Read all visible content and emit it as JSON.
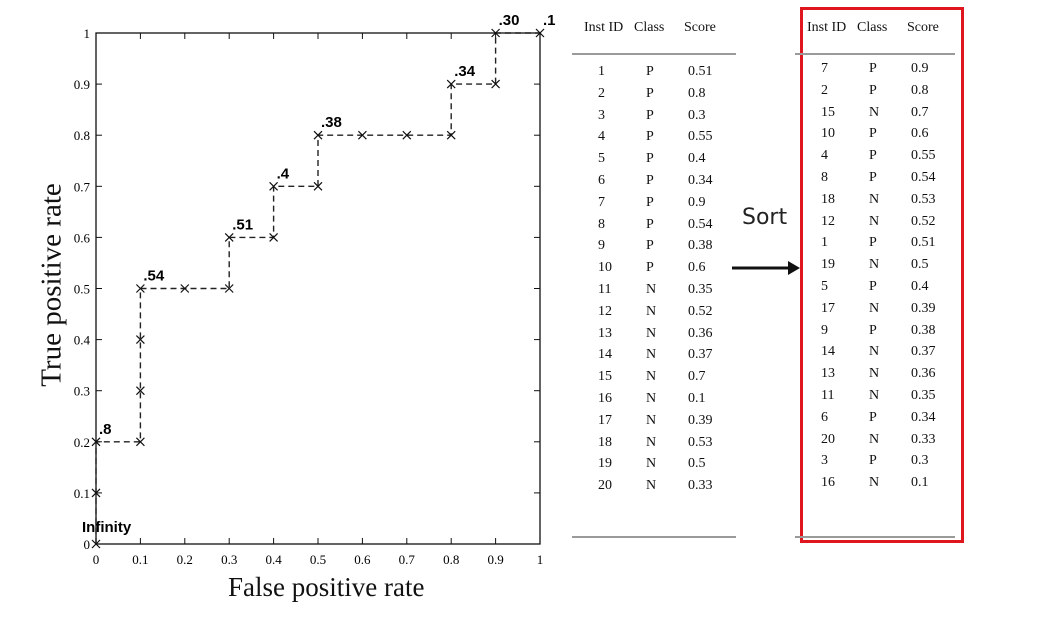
{
  "chart_data": {
    "type": "line",
    "title": "",
    "xlabel": "False positive rate",
    "ylabel": "True positive rate",
    "xlim": [
      0,
      1
    ],
    "ylim": [
      0,
      1
    ],
    "grid": false,
    "xticks": [
      "0",
      "0.1",
      "0.2",
      "0.3",
      "0.4",
      "0.5",
      "0.6",
      "0.7",
      "0.8",
      "0.9",
      "1"
    ],
    "yticks": [
      "0",
      "0.1",
      "0.2",
      "0.3",
      "0.4",
      "0.5",
      "0.6",
      "0.7",
      "0.8",
      "0.9",
      "1"
    ],
    "series": [
      {
        "x": [
          0,
          0,
          0,
          0.1,
          0.1,
          0.1,
          0.1,
          0.2,
          0.3,
          0.3,
          0.4,
          0.4,
          0.5,
          0.5,
          0.6,
          0.7,
          0.8,
          0.8,
          0.9,
          0.9,
          1
        ],
        "y": [
          0,
          0.1,
          0.2,
          0.2,
          0.3,
          0.4,
          0.5,
          0.5,
          0.5,
          0.6,
          0.6,
          0.7,
          0.7,
          0.8,
          0.8,
          0.8,
          0.8,
          0.9,
          0.9,
          1.0,
          1.0
        ]
      }
    ],
    "annotations": [
      {
        "text": "Infinity",
        "x": 0,
        "y": 0
      },
      {
        "text": ".8",
        "x": 0,
        "y": 0.2
      },
      {
        "text": ".54",
        "x": 0.1,
        "y": 0.5
      },
      {
        "text": ".51",
        "x": 0.3,
        "y": 0.6
      },
      {
        "text": ".4",
        "x": 0.4,
        "y": 0.7
      },
      {
        "text": ".38",
        "x": 0.5,
        "y": 0.8
      },
      {
        "text": ".34",
        "x": 0.8,
        "y": 0.9
      },
      {
        "text": ".30",
        "x": 0.9,
        "y": 1.0
      },
      {
        "text": ".1",
        "x": 1.0,
        "y": 1.0
      }
    ]
  },
  "tables": {
    "original": {
      "headers": [
        "Inst ID",
        "Class",
        "Score"
      ],
      "rows": [
        [
          "1",
          "P",
          "0.51"
        ],
        [
          "2",
          "P",
          "0.8"
        ],
        [
          "3",
          "P",
          "0.3"
        ],
        [
          "4",
          "P",
          "0.55"
        ],
        [
          "5",
          "P",
          "0.4"
        ],
        [
          "6",
          "P",
          "0.34"
        ],
        [
          "7",
          "P",
          "0.9"
        ],
        [
          "8",
          "P",
          "0.54"
        ],
        [
          "9",
          "P",
          "0.38"
        ],
        [
          "10",
          "P",
          "0.6"
        ],
        [
          "11",
          "N",
          "0.35"
        ],
        [
          "12",
          "N",
          "0.52"
        ],
        [
          "13",
          "N",
          "0.36"
        ],
        [
          "14",
          "N",
          "0.37"
        ],
        [
          "15",
          "N",
          "0.7"
        ],
        [
          "16",
          "N",
          "0.1"
        ],
        [
          "17",
          "N",
          "0.39"
        ],
        [
          "18",
          "N",
          "0.53"
        ],
        [
          "19",
          "N",
          "0.5"
        ],
        [
          "20",
          "N",
          "0.33"
        ]
      ]
    },
    "sorted": {
      "headers": [
        "Inst ID",
        "Class",
        "Score"
      ],
      "rows": [
        [
          "7",
          "P",
          "0.9"
        ],
        [
          "2",
          "P",
          "0.8"
        ],
        [
          "15",
          "N",
          "0.7"
        ],
        [
          "10",
          "P",
          "0.6"
        ],
        [
          "4",
          "P",
          "0.55"
        ],
        [
          "8",
          "P",
          "0.54"
        ],
        [
          "18",
          "N",
          "0.53"
        ],
        [
          "12",
          "N",
          "0.52"
        ],
        [
          "1",
          "P",
          "0.51"
        ],
        [
          "19",
          "N",
          "0.5"
        ],
        [
          "5",
          "P",
          "0.4"
        ],
        [
          "17",
          "N",
          "0.39"
        ],
        [
          "9",
          "P",
          "0.38"
        ],
        [
          "14",
          "N",
          "0.37"
        ],
        [
          "13",
          "N",
          "0.36"
        ],
        [
          "11",
          "N",
          "0.35"
        ],
        [
          "6",
          "P",
          "0.34"
        ],
        [
          "20",
          "N",
          "0.33"
        ],
        [
          "3",
          "P",
          "0.3"
        ],
        [
          "16",
          "N",
          "0.1"
        ]
      ]
    }
  },
  "sort_label": "Sort",
  "colors": {
    "highlight": "#e0161e",
    "line": "#222222"
  }
}
